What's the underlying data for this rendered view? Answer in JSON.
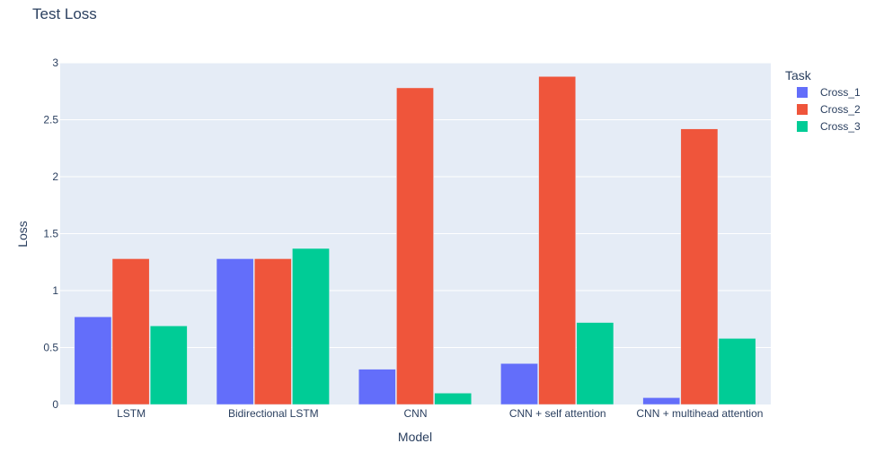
{
  "chart_data": {
    "type": "bar",
    "title": "Test Loss",
    "xlabel": "Model",
    "ylabel": "Loss",
    "legend_title": "Task",
    "legend_position": "right",
    "grid": true,
    "categories": [
      "LSTM",
      "Bidirectional LSTM",
      "CNN",
      "CNN + self attention",
      "CNN + multihead attention"
    ],
    "ylim": [
      0,
      3
    ],
    "yticks": [
      0,
      0.5,
      1,
      1.5,
      2,
      2.5,
      3
    ],
    "ytick_labels": [
      "0",
      "0.5",
      "1",
      "1.5",
      "2",
      "2.5",
      "3"
    ],
    "series": [
      {
        "name": "Cross_1",
        "color": "#636efa",
        "values": [
          0.77,
          1.28,
          0.31,
          0.36,
          0.06
        ]
      },
      {
        "name": "Cross_2",
        "color": "#ef553b",
        "values": [
          1.28,
          1.28,
          2.78,
          2.88,
          2.42
        ]
      },
      {
        "name": "Cross_3",
        "color": "#00cc96",
        "values": [
          0.69,
          1.37,
          0.1,
          0.72,
          0.58
        ]
      }
    ],
    "colors": {
      "plot_background": "#e5ecf6",
      "gridline": "#ffffff",
      "text": "#2a3f5f",
      "tick_text": "#2a3f5f"
    }
  }
}
